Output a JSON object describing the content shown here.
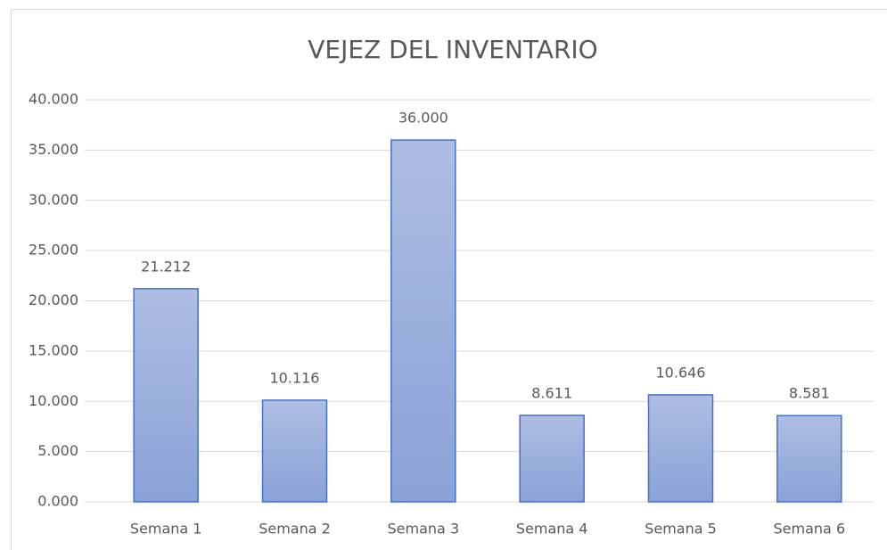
{
  "chart_data": {
    "type": "bar",
    "title": "VEJEZ DEL INVENTARIO",
    "categories": [
      "Semana 1",
      "Semana 2",
      "Semana 3",
      "Semana 4",
      "Semana 5",
      "Semana 6"
    ],
    "values": [
      21.212,
      10.116,
      36,
      8.611,
      10.646,
      8.581
    ],
    "value_labels": [
      "21.212",
      "10.116",
      "36.000",
      "8.611",
      "10.646",
      "8.581"
    ],
    "color": "#4472c4",
    "ylim": [
      0,
      40
    ],
    "yticks": [
      {
        "value": 0,
        "label": "0.000"
      },
      {
        "value": 5,
        "label": "5.000"
      },
      {
        "value": 10,
        "label": "10.000"
      },
      {
        "value": 15,
        "label": "15.000"
      },
      {
        "value": 20,
        "label": "20.000"
      },
      {
        "value": 25,
        "label": "25.000"
      },
      {
        "value": 30,
        "label": "30.000"
      },
      {
        "value": 35,
        "label": "35.000"
      },
      {
        "value": 40,
        "label": "40.000"
      }
    ],
    "grid": true
  }
}
